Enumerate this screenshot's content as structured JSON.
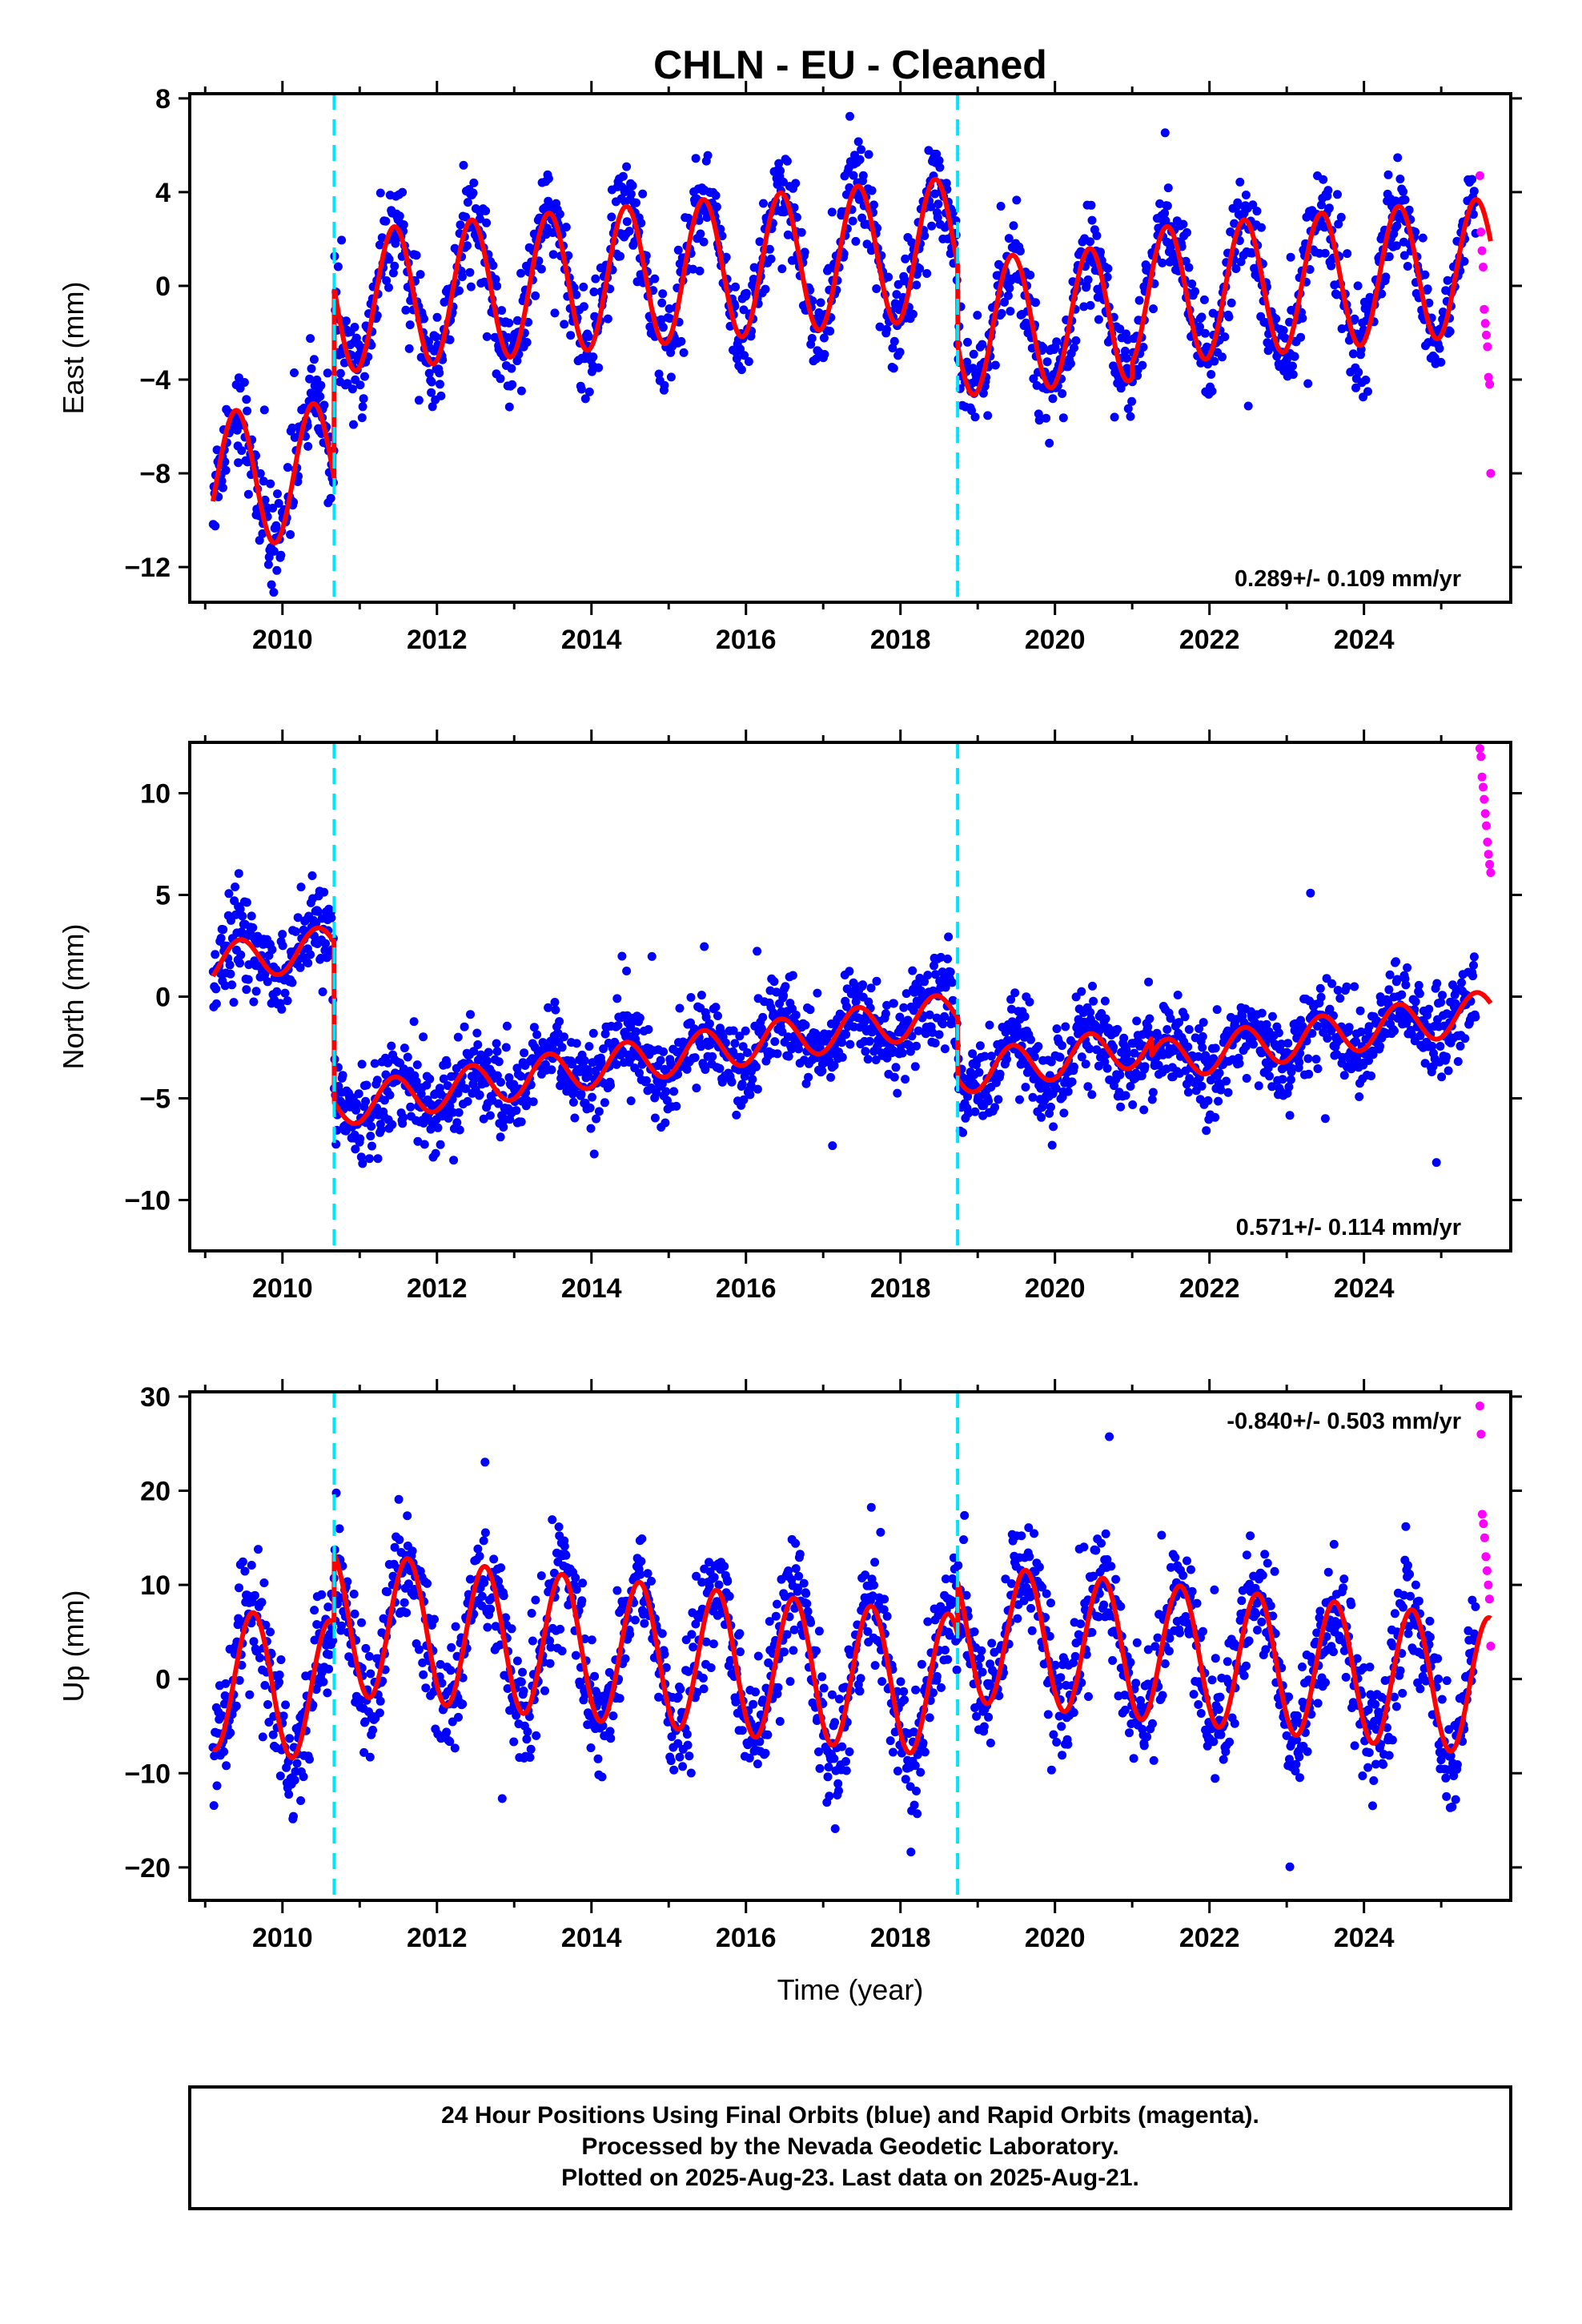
{
  "title": "CHLN  - EU - Cleaned",
  "xlabel": "Time (year)",
  "footer": {
    "line1": "24 Hour Positions Using Final Orbits (blue) and Rapid Orbits (magenta).",
    "line2": "Processed by the Nevada Geodetic Laboratory.",
    "line3": "Plotted on 2025-Aug-23. Last data on 2025-Aug-21."
  },
  "colors": {
    "final_orbits": "#0000ff",
    "rapid_orbits": "#ff00ff",
    "model_fit": "#ff0000",
    "offset_lines": "#00e5ff",
    "frame": "#000000"
  },
  "chart_data": [
    {
      "type": "scatter",
      "component": "east",
      "ylabel": "East (mm)",
      "xlim": [
        2008.8,
        2025.9
      ],
      "ylim": [
        -13.5,
        8.2
      ],
      "xticks": [
        2010,
        2012,
        2014,
        2016,
        2018,
        2020,
        2022,
        2024
      ],
      "yticks": [
        -12,
        -8,
        -4,
        0,
        4,
        8
      ],
      "ytick_labels": [
        "−12",
        "−8",
        "−4",
        "0",
        "4",
        "8"
      ],
      "rate_label": "0.289+/- 0.109 mm/yr",
      "rate_position": "bottom-right",
      "offset_epochs": [
        2010.67,
        2018.74
      ],
      "data_span": [
        2009.1,
        2025.45
      ],
      "rapid_span": [
        2025.5,
        2025.64
      ],
      "model": {
        "segments": [
          {
            "start": 2009.1,
            "end": 2010.67,
            "level": -8.3,
            "trend": 0.289,
            "amp": 2.9,
            "peak": 0.4
          },
          {
            "start": 2010.67,
            "end": 2018.74,
            "level": -0.7,
            "trend": 0.289,
            "amp": 3.0,
            "peak": 0.45
          },
          {
            "start": 2018.74,
            "end": 2021.0,
            "level": -1.8,
            "trend": 0.289,
            "amp": 2.9,
            "peak": 0.45
          },
          {
            "start": 2021.0,
            "end": 2025.64,
            "level": -0.5,
            "trend": 0.289,
            "amp": 2.9,
            "peak": 0.45
          }
        ]
      },
      "scatter_sigma": 1.0,
      "rapid_values": [
        4.7,
        2.3,
        1.5,
        0.8,
        -1.0,
        -1.6,
        -2.1,
        -2.6,
        -3.9,
        -4.2,
        -8.0
      ]
    },
    {
      "type": "scatter",
      "component": "north",
      "ylabel": "North (mm)",
      "xlim": [
        2008.8,
        2025.9
      ],
      "ylim": [
        -12.5,
        12.5
      ],
      "xticks": [
        2010,
        2012,
        2014,
        2016,
        2018,
        2020,
        2022,
        2024
      ],
      "yticks": [
        -10,
        -5,
        0,
        5,
        10
      ],
      "ytick_labels": [
        "−10",
        "−5",
        "0",
        "5",
        "10"
      ],
      "rate_label": "0.571+/- 0.114 mm/yr",
      "rate_position": "bottom-right",
      "offset_epochs": [
        2010.67,
        2018.74
      ],
      "data_span": [
        2009.1,
        2025.45
      ],
      "rapid_span": [
        2025.5,
        2025.64
      ],
      "model": {
        "segments": [
          {
            "start": 2009.1,
            "end": 2010.67,
            "level": 1.6,
            "trend": 0.571,
            "amp": 1.0,
            "peak": 0.45
          },
          {
            "start": 2010.67,
            "end": 2018.74,
            "level": -5.4,
            "trend": 0.571,
            "amp": 1.0,
            "peak": 0.45
          },
          {
            "start": 2018.74,
            "end": 2021.25,
            "level": -3.8,
            "trend": 0.571,
            "amp": 1.0,
            "peak": 0.45
          },
          {
            "start": 2021.25,
            "end": 2025.64,
            "level": -3.2,
            "trend": 0.571,
            "amp": 1.0,
            "peak": 0.45
          }
        ]
      },
      "scatter_sigma": 1.1,
      "rapid_values": [
        12.2,
        11.8,
        10.8,
        10.3,
        9.7,
        9.0,
        8.4,
        7.6,
        7.0,
        6.5,
        6.1
      ]
    },
    {
      "type": "scatter",
      "component": "up",
      "ylabel": "Up (mm)",
      "xlim": [
        2008.8,
        2025.9
      ],
      "ylim": [
        -23.5,
        30.5
      ],
      "xticks": [
        2010,
        2012,
        2014,
        2016,
        2018,
        2020,
        2022,
        2024
      ],
      "yticks": [
        -20,
        -10,
        0,
        10,
        20,
        30
      ],
      "ytick_labels": [
        "−20",
        "−10",
        "0",
        "10",
        "20",
        "30"
      ],
      "rate_label": "-0.840+/- 0.503 mm/yr",
      "rate_position": "top-right",
      "offset_epochs": [
        2010.67,
        2018.74
      ],
      "data_span": [
        2009.1,
        2025.45
      ],
      "rapid_span": [
        2025.5,
        2025.64
      ],
      "model": {
        "segments": [
          {
            "start": 2009.1,
            "end": 2010.67,
            "level": 0.0,
            "trend": -0.84,
            "amp": 7.5,
            "peak": 0.62
          },
          {
            "start": 2010.67,
            "end": 2018.74,
            "level": 6.0,
            "trend": -0.84,
            "amp": 7.6,
            "peak": 0.62
          },
          {
            "start": 2018.74,
            "end": 2025.64,
            "level": 5.0,
            "trend": -0.84,
            "amp": 7.3,
            "peak": 0.62
          }
        ]
      },
      "scatter_sigma": 3.2,
      "rapid_values": [
        29.0,
        26.0,
        17.5,
        16.5,
        15.0,
        13.0,
        11.5,
        10.0,
        8.5,
        3.5
      ]
    }
  ]
}
